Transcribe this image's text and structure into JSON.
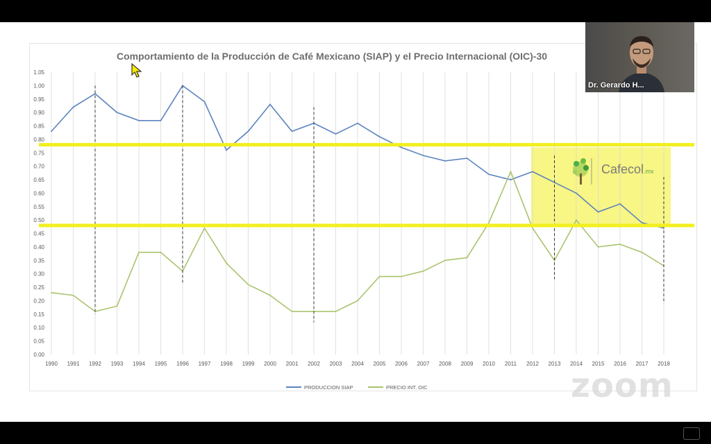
{
  "chart_data": {
    "type": "line",
    "title": "Comportamiento de la Producción de Café Mexicano (SIAP) y el Precio Internacional (OIC)-30",
    "categories": [
      "1990",
      "1991",
      "1992",
      "1993",
      "1994",
      "1995",
      "1996",
      "1997",
      "1998",
      "1999",
      "2000",
      "2001",
      "2002",
      "2003",
      "2004",
      "2005",
      "2006",
      "2007",
      "2008",
      "2009",
      "2010",
      "2011",
      "2012",
      "2013",
      "2014",
      "2015",
      "2016",
      "2017",
      "2018"
    ],
    "y_ticks": [
      "0.00",
      "0.05",
      "0.10",
      "0.15",
      "0.20",
      "0.25",
      "0.30",
      "0.35",
      "0.40",
      "0.45",
      "0.50",
      "0.55",
      "0.60",
      "0.65",
      "0.70",
      "0.75",
      "0.80",
      "0.85",
      "0.90",
      "0.95",
      "1.00",
      "1.05"
    ],
    "ylim": [
      0,
      1.05
    ],
    "grid": "vertical",
    "legend_position": "bottom",
    "series": [
      {
        "name": "PRODUCCION SIAP",
        "color": "#5b83bf",
        "values": [
          0.83,
          0.92,
          0.97,
          0.9,
          0.87,
          0.87,
          1.0,
          0.94,
          0.76,
          0.83,
          0.93,
          0.83,
          0.86,
          0.82,
          0.86,
          0.81,
          0.77,
          0.74,
          0.72,
          0.73,
          0.67,
          0.65,
          0.68,
          0.64,
          0.6,
          0.53,
          0.56,
          0.49,
          0.47
        ]
      },
      {
        "name": "PRECIO INT. OIC",
        "color": "#a9c46e",
        "values": [
          0.23,
          0.22,
          0.16,
          0.18,
          0.38,
          0.38,
          0.31,
          0.47,
          0.34,
          0.26,
          0.22,
          0.16,
          0.16,
          0.16,
          0.2,
          0.29,
          0.29,
          0.31,
          0.35,
          0.36,
          0.49,
          0.68,
          0.47,
          0.35,
          0.5,
          0.4,
          0.41,
          0.38,
          0.33
        ]
      }
    ],
    "annotations": {
      "horizontal_highlight_lines": [
        0.78,
        0.48
      ],
      "highlight_color": "#f2ef1f",
      "dashed_vertical_years": [
        "1992",
        "1996",
        "2002",
        "2013",
        "2018"
      ],
      "highlight_box": {
        "x_from": "2012",
        "x_to": "2018",
        "y_from": 0.48,
        "y_to": 0.76
      }
    }
  },
  "video": {
    "participant_name": "Dr. Gerardo H..."
  },
  "watermark": {
    "text": "zoom"
  },
  "logo": {
    "name": "Cafecol",
    "suffix": ".mx"
  },
  "colors": {
    "axis_text": "#595959",
    "grid": "#d9d9d9"
  }
}
